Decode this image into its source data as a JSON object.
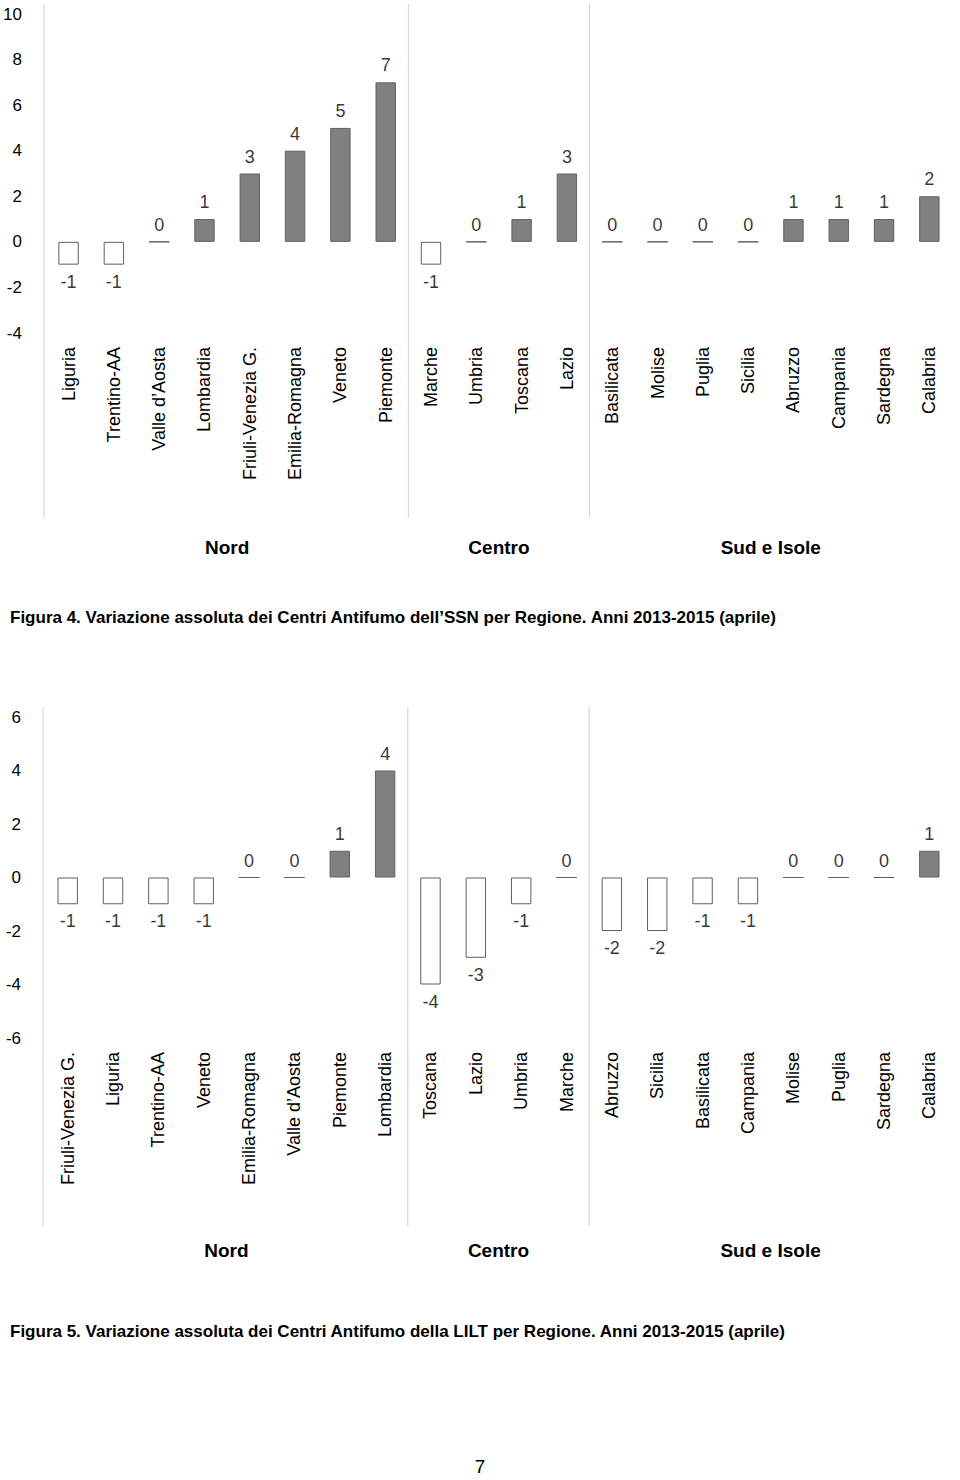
{
  "chart_data": [
    {
      "type": "bar",
      "title": "Figura 4. Variazione assoluta dei Centri Antifumo dell’SSN per Regione. Anni 2013-2015 (aprile)",
      "categories": [
        "Liguria",
        "Trentino-AA",
        "Valle d’Aosta",
        "Lombardia",
        "Friuli-Venezia G.",
        "Emilia-Romagna",
        "Veneto",
        "Piemonte",
        "Marche",
        "Umbria",
        "Toscana",
        "Lazio",
        "Basilicata",
        "Molise",
        "Puglia",
        "Sicilia",
        "Abruzzo",
        "Campania",
        "Sardegna",
        "Calabria"
      ],
      "values": [
        -1,
        -1,
        0,
        1,
        3,
        4,
        5,
        7,
        -1,
        0,
        1,
        3,
        0,
        0,
        0,
        0,
        1,
        1,
        1,
        2
      ],
      "colors": [
        "#ffffff",
        "#ffffff",
        "#808080",
        "#808080",
        "#808080",
        "#808080",
        "#808080",
        "#808080",
        "#ffffff",
        "#808080",
        "#808080",
        "#808080",
        "#808080",
        "#808080",
        "#808080",
        "#808080",
        "#808080",
        "#808080",
        "#808080",
        "#808080"
      ],
      "groups": [
        {
          "name": "Nord",
          "size": 8
        },
        {
          "name": "Centro",
          "size": 4
        },
        {
          "name": "Sud e Isole",
          "size": 8
        }
      ],
      "ylim": [
        -4,
        10
      ],
      "yticks": [
        -4,
        -2,
        0,
        2,
        4,
        6,
        8,
        10
      ],
      "grid": false,
      "data_labels": true
    },
    {
      "type": "bar",
      "title": "Figura 5. Variazione assoluta dei Centri Antifumo della LILT per Regione. Anni 2013-2015 (aprile)",
      "categories": [
        "Friuli-Venezia G.",
        "Liguria",
        "Trentino-AA",
        "Veneto",
        "Emilia-Romagna",
        "Valle d’Aosta",
        "Piemonte",
        "Lombardia",
        "Toscana",
        "Lazio",
        "Umbria",
        "Marche",
        "Abruzzo",
        "Sicilia",
        "Basilicata",
        "Campania",
        "Molise",
        "Puglia",
        "Sardegna",
        "Calabria"
      ],
      "values": [
        -1,
        -1,
        -1,
        -1,
        0,
        0,
        1,
        4,
        -4,
        -3,
        -1,
        0,
        -2,
        -2,
        -1,
        -1,
        0,
        0,
        0,
        1
      ],
      "colors": [
        "#ffffff",
        "#ffffff",
        "#ffffff",
        "#ffffff",
        "#808080",
        "#808080",
        "#808080",
        "#808080",
        "#ffffff",
        "#ffffff",
        "#ffffff",
        "#808080",
        "#ffffff",
        "#ffffff",
        "#ffffff",
        "#ffffff",
        "#808080",
        "#808080",
        "#808080",
        "#808080"
      ],
      "groups": [
        {
          "name": "Nord",
          "size": 8
        },
        {
          "name": "Centro",
          "size": 4
        },
        {
          "name": "Sud e Isole",
          "size": 8
        }
      ],
      "ylim": [
        -6,
        6
      ],
      "yticks": [
        -6,
        -4,
        -2,
        0,
        2,
        4,
        6
      ],
      "grid": false,
      "data_labels": true
    }
  ],
  "page_number": "7"
}
